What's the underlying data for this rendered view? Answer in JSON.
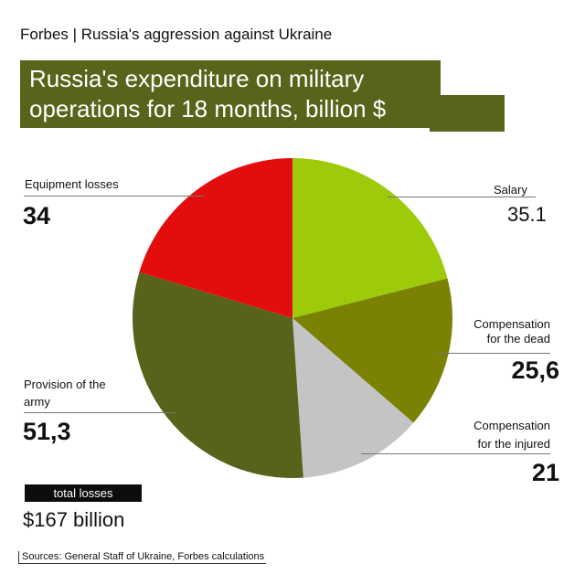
{
  "header": {
    "text": "Forbes | Russia's aggression against Ukraine"
  },
  "title": {
    "line1": "Russia's expenditure on military",
    "line2": "operations for 18 months, billion $"
  },
  "chart_data": {
    "type": "pie",
    "title": "Russia's expenditure on military operations for 18 months, billion $",
    "slices": [
      {
        "label": "Salary",
        "value": 35.1,
        "display": "35.1",
        "color": "#9dcb0a"
      },
      {
        "label": "Compensation for the dead",
        "value": 25.6,
        "display": "25,6",
        "color": "#7a8103"
      },
      {
        "label": "Compensation for the injured",
        "value": 21,
        "display": "21",
        "color": "#c4c4c4"
      },
      {
        "label": "Provision of the army",
        "value": 51.3,
        "display": "51,3",
        "color": "#57631b"
      },
      {
        "label": "Equipment losses",
        "value": 34,
        "display": "34",
        "color": "#e30d0d"
      }
    ],
    "total_label": "total losses",
    "total_value": "$167 billion"
  },
  "labels": {
    "salary": "Salary",
    "dead_line1": "Compensation",
    "dead_line2": "for the dead",
    "injured_line1": "Compensation",
    "injured_line2": "for the injured",
    "army_line1": "Provision of the",
    "army_line2": "army",
    "equipment": "Equipment losses"
  },
  "source": "Sources: General Staff of Ukraine, Forbes calculations"
}
